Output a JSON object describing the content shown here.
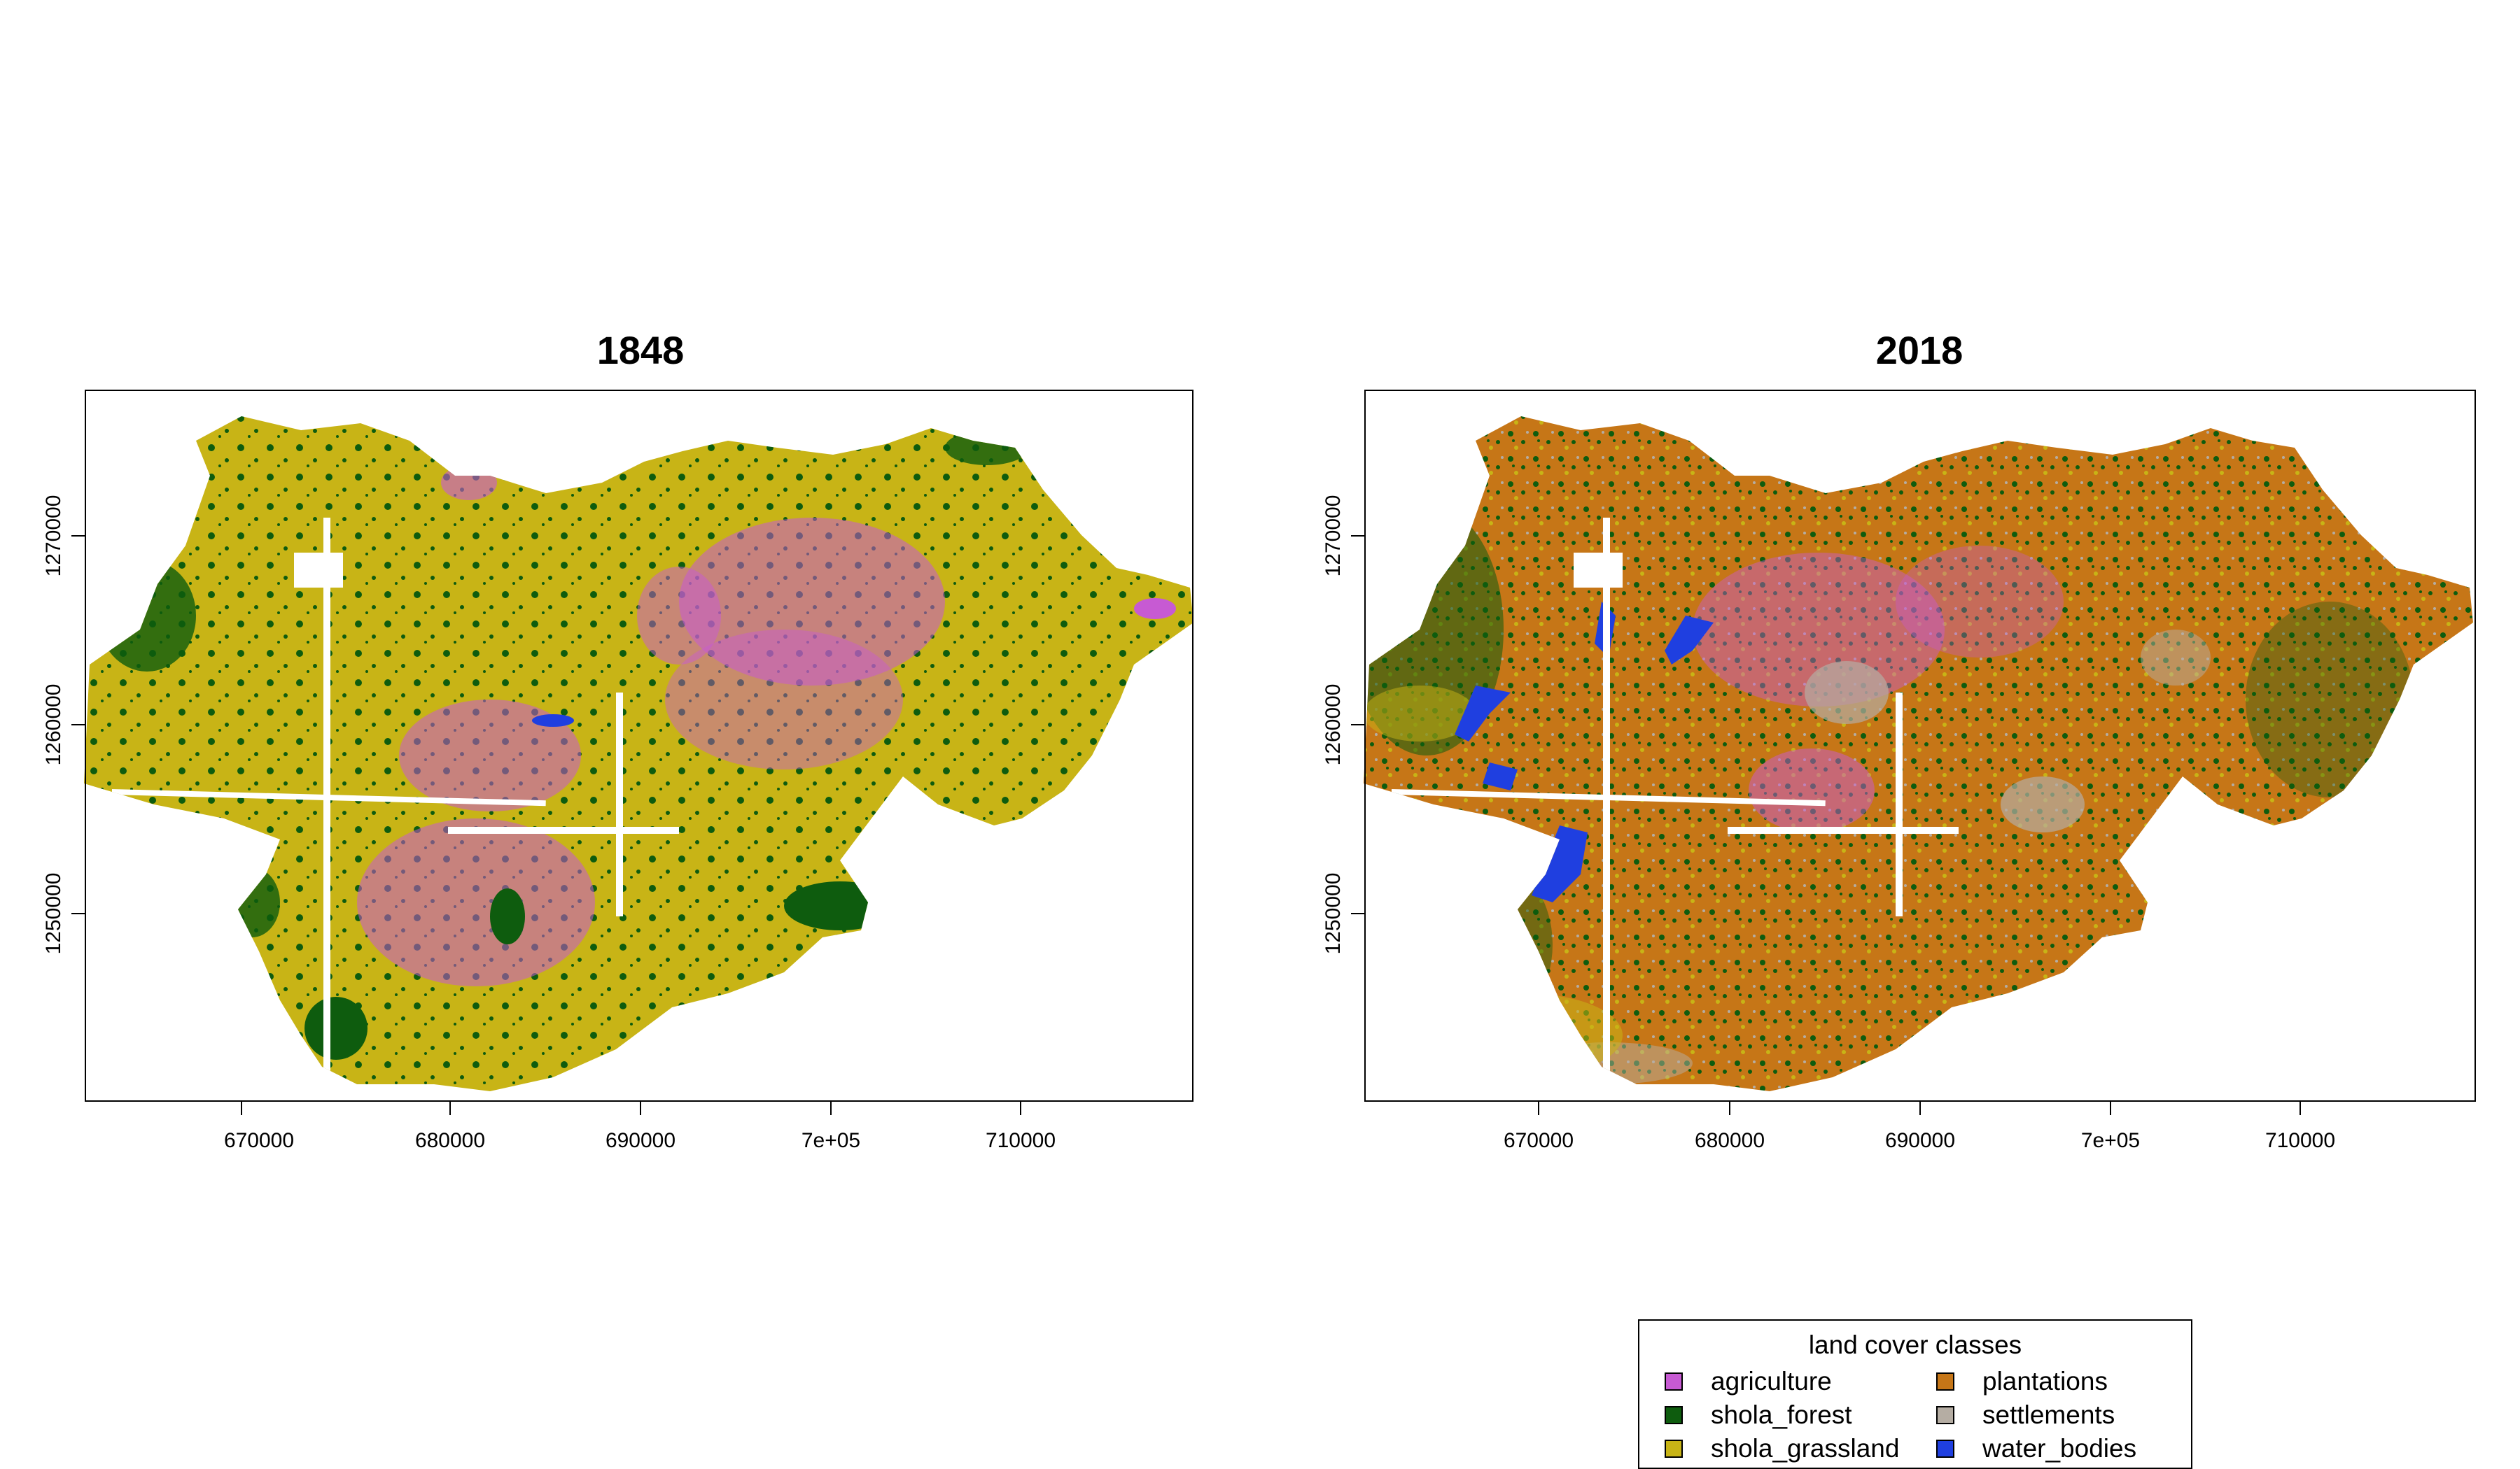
{
  "maps": [
    {
      "title": "1848",
      "x_ticks": [
        "670000",
        "680000",
        "690000",
        "7e+05",
        "710000"
      ],
      "y_ticks": [
        "1250000",
        "1260000",
        "1270000"
      ]
    },
    {
      "title": "2018",
      "x_ticks": [
        "670000",
        "680000",
        "690000",
        "7e+05",
        "710000"
      ],
      "y_ticks": [
        "1250000",
        "1260000",
        "1270000"
      ]
    }
  ],
  "legend": {
    "title": "land cover classes",
    "items": [
      {
        "label": "agriculture",
        "color": "#c75ad3"
      },
      {
        "label": "shola_forest",
        "color": "#0e5c0e"
      },
      {
        "label": "shola_grassland",
        "color": "#c8b416"
      },
      {
        "label": "plantations",
        "color": "#c67617"
      },
      {
        "label": "settlements",
        "color": "#b5ada3"
      },
      {
        "label": "water_bodies",
        "color": "#1f3fe0"
      }
    ]
  }
}
